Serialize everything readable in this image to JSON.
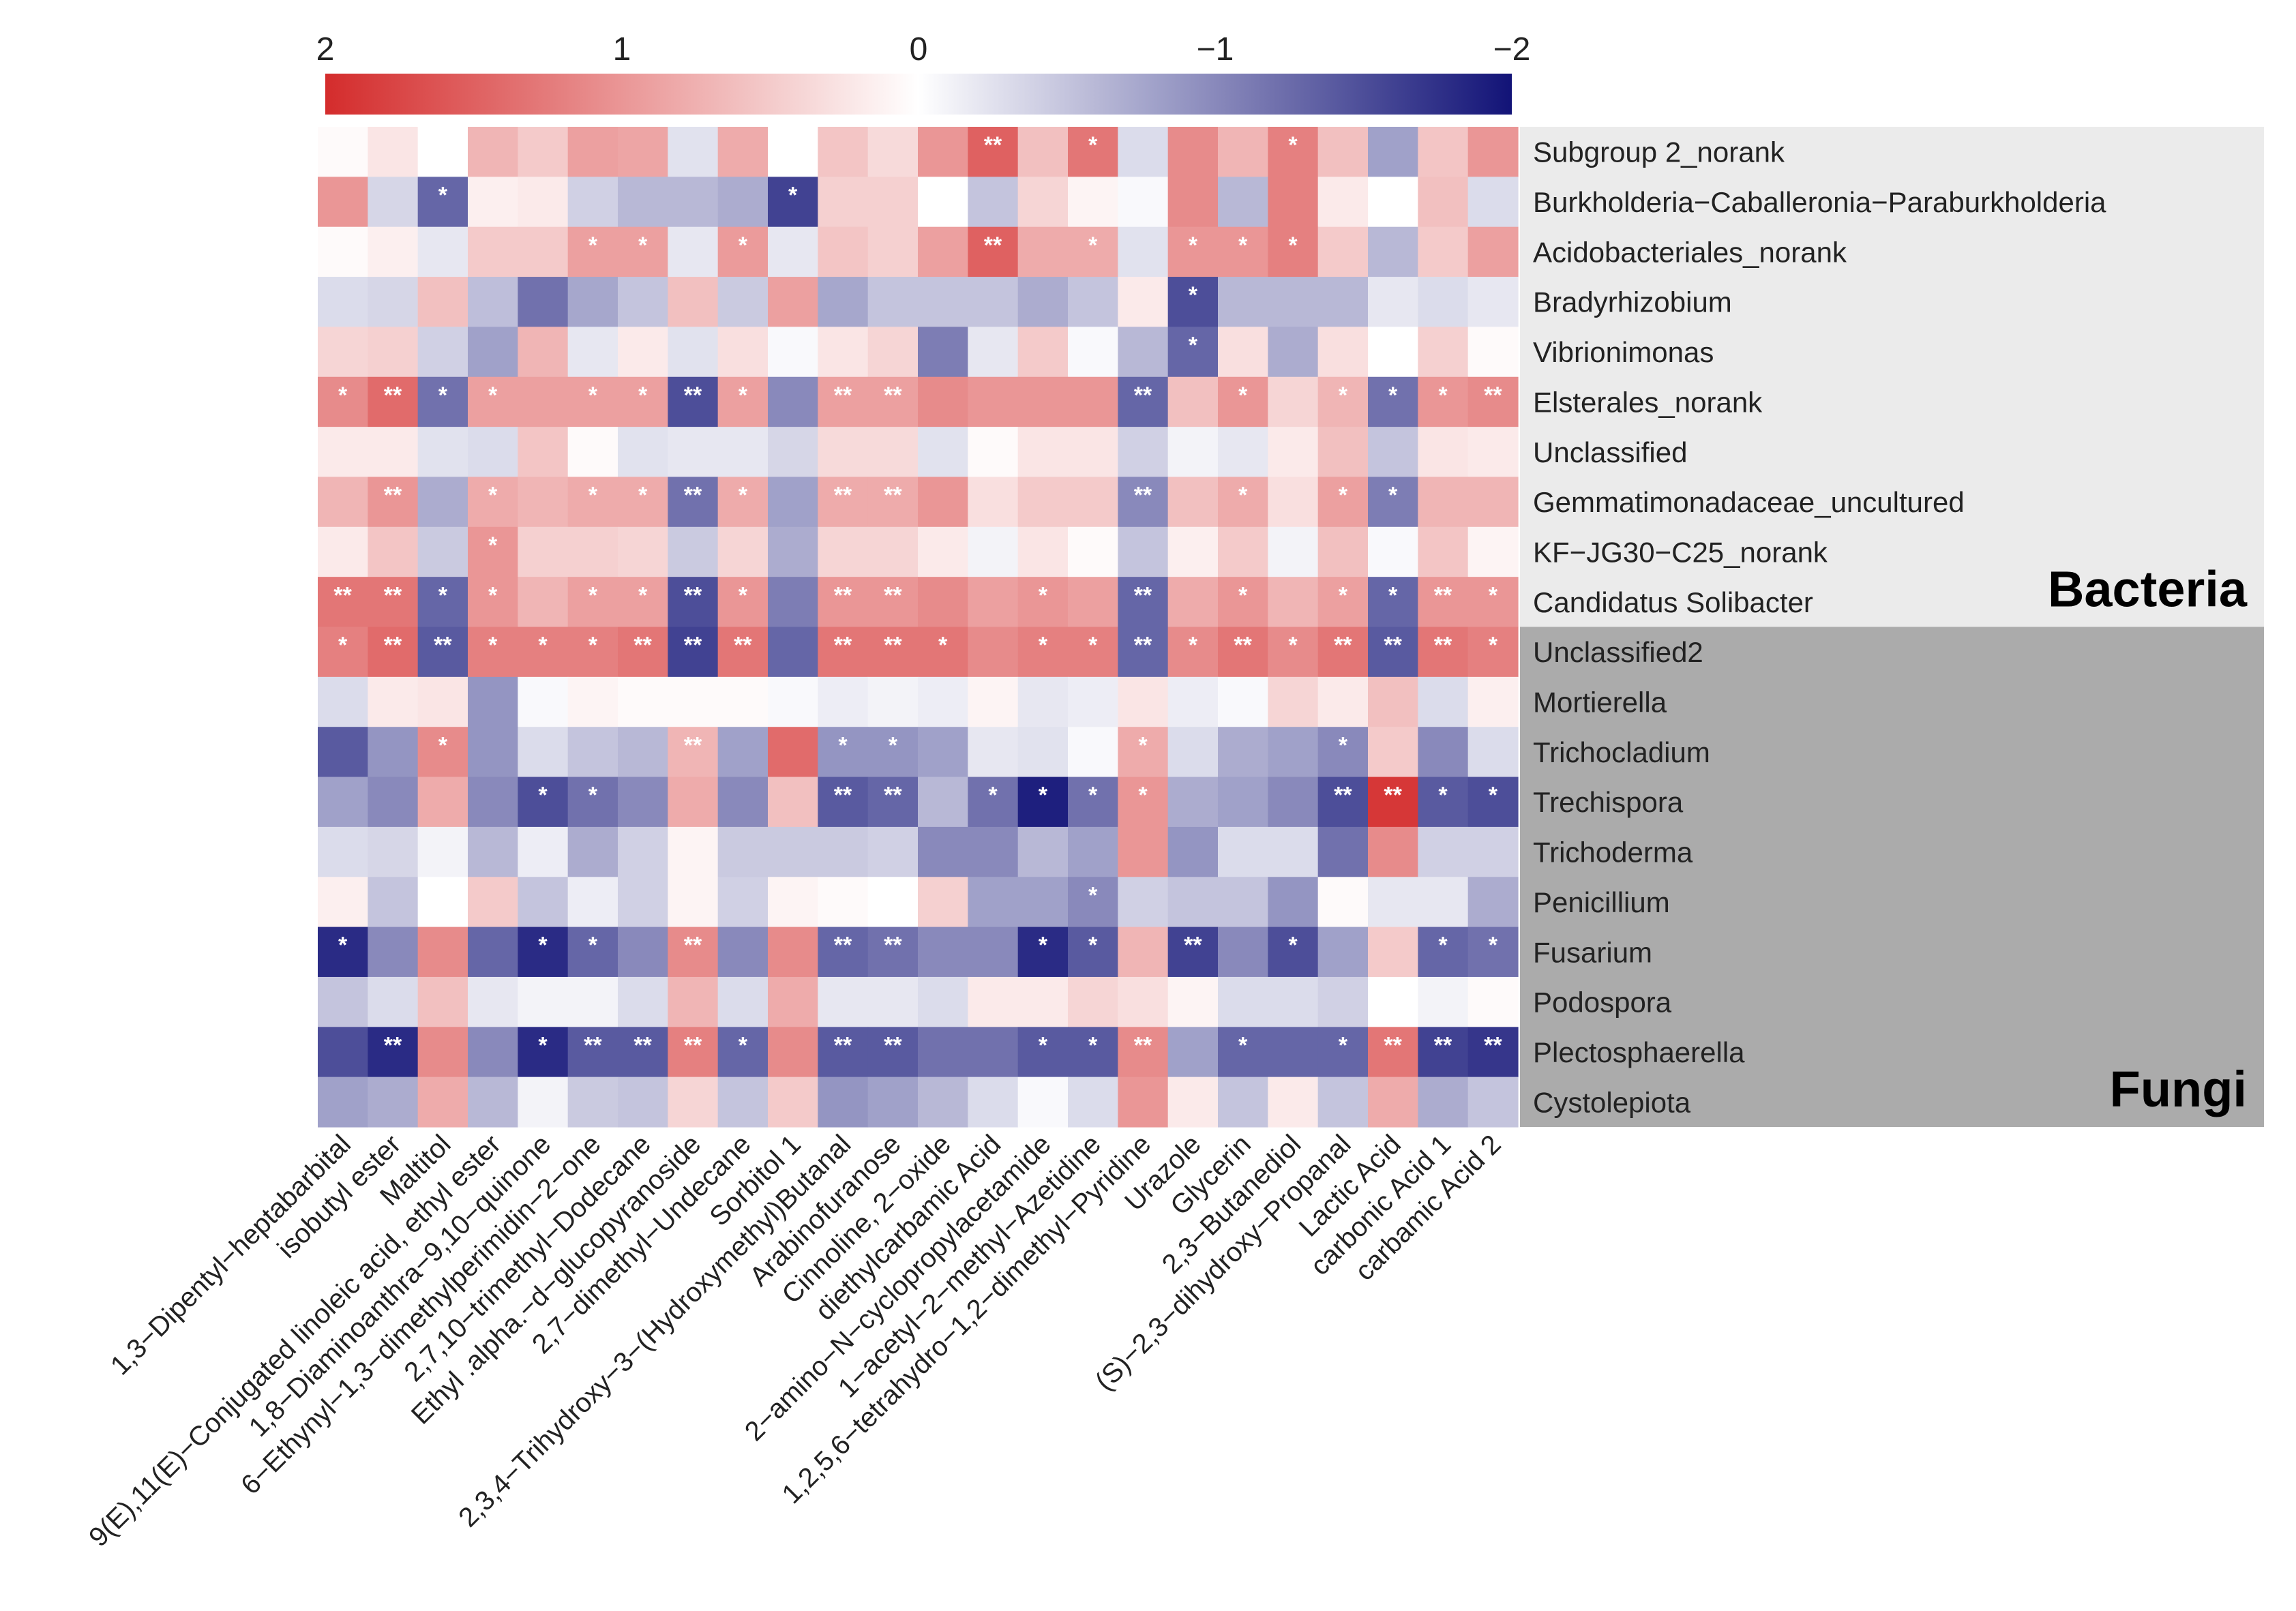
{
  "chart_data": {
    "type": "heatmap",
    "scale": {
      "min": -2,
      "max": 2,
      "ticks": [
        {
          "value": 2,
          "label": "2"
        },
        {
          "value": 1,
          "label": "1"
        },
        {
          "value": 0,
          "label": "0"
        },
        {
          "value": -1,
          "label": "−1"
        },
        {
          "value": -2,
          "label": "−2"
        }
      ],
      "colors": {
        "high": "#d42c2c",
        "mid": "#ffffff",
        "low": "#121377"
      }
    },
    "groups": [
      {
        "label": "Bacteria",
        "from_row": 0,
        "to_row": 9,
        "color": "#ebebeb"
      },
      {
        "label": "Fungi",
        "from_row": 10,
        "to_row": 19,
        "color": "#ababab"
      }
    ],
    "rows": [
      "Subgroup 2_norank",
      "Burkholderia−Caballeronia−Paraburkholderia",
      "Acidobacteriales_norank",
      "Bradyrhizobium",
      "Vibrionimonas",
      "Elsterales_norank",
      "Unclassified",
      "Gemmatimonadaceae_uncultured",
      "KF−JG30−C25_norank",
      "Candidatus Solibacter",
      "Unclassified2",
      "Mortierella",
      "Trichocladium",
      "Trechispora",
      "Trichoderma",
      "Penicillium",
      "Fusarium",
      "Podospora",
      "Plectosphaerella",
      "Cystolepiota"
    ],
    "columns": [
      "1,3−Dipentyl−heptabarbital",
      "isobutyl ester",
      "Maltitol",
      "9(E),11(E)−Conjugated linoleic acid, ethyl ester",
      "1,8−Diaminoanthra−9,10−quinone",
      "6−Ethynyl−1,3−dimethylperimidin−2−one",
      "2,7,10−trimethyl−Dodecane",
      "Ethyl .alpha.−d−glucopyranoside",
      "2,7−dimethyl−Undecane",
      "Sorbitol 1",
      "2,3,4−Trihydroxy−3−(Hydroxymethyl)Butanal",
      "Arabinofuranose",
      "Cinnoline, 2−oxide",
      "diethylcarbamic Acid",
      "2−amino−N−cyclopropylacetamide",
      "1−acetyl−2−methyl−Azetidine",
      "1,2,5,6−tetrahydro−1,2−dimethyl−Pyridine",
      "Urazole",
      "Glycerin",
      "2,3−Butanediol",
      "(S)−2,3−dihydroxy−Propanal",
      "Lactic Acid",
      "carbonic Acid 1",
      "carbamic Acid 2"
    ],
    "values": [
      [
        0.05,
        0.25,
        0.0,
        0.7,
        0.5,
        0.9,
        0.85,
        -0.25,
        0.8,
        0.0,
        0.55,
        0.35,
        1.0,
        1.5,
        0.6,
        1.3,
        -0.3,
        1.1,
        0.7,
        1.2,
        0.6,
        -0.8,
        0.55,
        1.0
      ],
      [
        1.0,
        -0.35,
        -1.3,
        0.15,
        0.2,
        -0.4,
        -0.6,
        -0.6,
        -0.7,
        -1.6,
        0.45,
        0.45,
        0.0,
        -0.5,
        0.4,
        0.1,
        -0.05,
        1.1,
        -0.6,
        1.2,
        0.2,
        0.0,
        0.6,
        -0.3
      ],
      [
        0.05,
        0.15,
        -0.2,
        0.5,
        0.5,
        0.9,
        0.9,
        -0.2,
        0.95,
        -0.2,
        0.55,
        0.45,
        0.9,
        1.5,
        0.8,
        0.8,
        -0.25,
        1.0,
        1.0,
        1.2,
        0.5,
        -0.6,
        0.5,
        0.9
      ],
      [
        -0.3,
        -0.35,
        0.6,
        -0.55,
        -1.2,
        -0.75,
        -0.5,
        0.6,
        -0.45,
        0.9,
        -0.75,
        -0.5,
        -0.5,
        -0.5,
        -0.7,
        -0.5,
        0.2,
        -1.5,
        -0.6,
        -0.6,
        -0.6,
        -0.2,
        -0.3,
        -0.2
      ],
      [
        0.4,
        0.45,
        -0.4,
        -0.8,
        0.7,
        -0.2,
        0.2,
        -0.25,
        0.3,
        -0.05,
        0.25,
        0.4,
        -1.1,
        -0.2,
        0.5,
        -0.05,
        -0.6,
        -1.3,
        0.3,
        -0.7,
        0.3,
        0.0,
        0.45,
        0.05
      ],
      [
        1.1,
        1.4,
        -1.2,
        0.9,
        0.9,
        0.9,
        0.9,
        -1.5,
        0.9,
        -1.0,
        0.9,
        0.9,
        1.1,
        1.0,
        1.0,
        1.0,
        -1.3,
        0.6,
        1.0,
        0.4,
        0.7,
        -1.2,
        1.0,
        1.1
      ],
      [
        0.2,
        0.2,
        -0.25,
        -0.3,
        0.55,
        0.05,
        -0.25,
        -0.2,
        -0.2,
        -0.35,
        0.35,
        0.35,
        -0.25,
        0.05,
        0.25,
        0.25,
        -0.4,
        -0.1,
        -0.2,
        0.2,
        0.6,
        -0.5,
        0.25,
        0.2
      ],
      [
        0.7,
        1.0,
        -0.7,
        0.8,
        0.7,
        0.8,
        0.8,
        -1.2,
        0.8,
        -0.8,
        0.8,
        0.8,
        1.0,
        0.3,
        0.5,
        0.5,
        -1.0,
        0.6,
        0.8,
        0.3,
        0.9,
        -1.1,
        0.7,
        0.7
      ],
      [
        0.2,
        0.55,
        -0.45,
        1.0,
        0.45,
        0.45,
        0.4,
        -0.45,
        0.4,
        -0.7,
        0.4,
        0.4,
        0.2,
        -0.1,
        0.25,
        0.05,
        -0.5,
        0.15,
        0.5,
        -0.1,
        0.6,
        -0.05,
        0.55,
        0.1
      ],
      [
        1.3,
        1.3,
        -1.3,
        1.0,
        0.7,
        0.9,
        0.9,
        -1.5,
        1.0,
        -1.1,
        1.0,
        1.0,
        1.1,
        0.9,
        1.0,
        0.9,
        -1.3,
        0.8,
        1.0,
        0.7,
        0.9,
        -1.3,
        1.0,
        1.0
      ],
      [
        1.2,
        1.4,
        -1.4,
        1.2,
        1.2,
        1.2,
        1.3,
        -1.6,
        1.3,
        -1.3,
        1.3,
        1.3,
        1.3,
        1.1,
        1.2,
        1.2,
        -1.3,
        1.1,
        1.3,
        1.1,
        1.3,
        -1.4,
        1.3,
        1.2
      ],
      [
        -0.3,
        0.2,
        0.25,
        -0.9,
        -0.05,
        0.1,
        0.05,
        0.05,
        0.05,
        -0.05,
        -0.15,
        -0.1,
        -0.15,
        0.1,
        -0.2,
        -0.15,
        0.25,
        -0.15,
        -0.05,
        0.4,
        0.2,
        0.6,
        -0.3,
        0.15
      ],
      [
        -1.4,
        -0.9,
        1.1,
        -0.9,
        -0.3,
        -0.5,
        -0.6,
        0.7,
        -0.8,
        1.4,
        -0.9,
        -0.9,
        -0.8,
        -0.2,
        -0.25,
        -0.05,
        0.8,
        -0.3,
        -0.7,
        -0.8,
        -1.0,
        0.5,
        -1.0,
        -0.3
      ],
      [
        -0.8,
        -1.0,
        0.8,
        -1.0,
        -1.5,
        -1.2,
        -1.0,
        0.8,
        -1.0,
        0.6,
        -1.4,
        -1.3,
        -0.6,
        -1.2,
        -1.9,
        -1.2,
        1.0,
        -0.7,
        -0.8,
        -1.0,
        -1.5,
        1.9,
        -1.4,
        -1.5
      ],
      [
        -0.3,
        -0.35,
        -0.1,
        -0.6,
        -0.15,
        -0.7,
        -0.4,
        0.1,
        -0.45,
        -0.45,
        -0.45,
        -0.4,
        -1.0,
        -1.0,
        -0.6,
        -0.8,
        1.0,
        -0.9,
        -0.3,
        -0.3,
        -1.2,
        1.1,
        -0.4,
        -0.4
      ],
      [
        0.15,
        -0.5,
        0.0,
        0.5,
        -0.5,
        -0.15,
        -0.4,
        0.1,
        -0.4,
        0.1,
        0.05,
        0.0,
        0.45,
        -0.8,
        -0.8,
        -1.0,
        -0.4,
        -0.5,
        -0.5,
        -0.9,
        0.05,
        -0.2,
        -0.2,
        -0.7
      ],
      [
        -1.8,
        -1.0,
        1.1,
        -1.3,
        -1.8,
        -1.3,
        -1.0,
        1.1,
        -1.0,
        1.1,
        -1.3,
        -1.2,
        -1.0,
        -1.0,
        -1.8,
        -1.4,
        0.7,
        -1.6,
        -1.0,
        -1.5,
        -0.8,
        0.5,
        -1.3,
        -1.2
      ],
      [
        -0.5,
        -0.3,
        0.6,
        -0.2,
        -0.1,
        -0.1,
        -0.3,
        0.7,
        -0.3,
        0.8,
        -0.2,
        -0.2,
        -0.3,
        0.2,
        0.2,
        0.4,
        0.3,
        0.1,
        -0.3,
        -0.3,
        -0.4,
        0.0,
        -0.1,
        0.05
      ],
      [
        -1.5,
        -1.8,
        1.1,
        -1.0,
        -1.8,
        -1.4,
        -1.4,
        1.2,
        -1.3,
        1.1,
        -1.4,
        -1.4,
        -1.2,
        -1.2,
        -1.4,
        -1.4,
        1.1,
        -0.8,
        -1.3,
        -1.3,
        -1.3,
        1.3,
        -1.6,
        -1.7
      ],
      [
        -0.8,
        -0.7,
        0.8,
        -0.6,
        -0.1,
        -0.45,
        -0.5,
        0.4,
        -0.5,
        0.5,
        -0.9,
        -0.8,
        -0.6,
        -0.3,
        -0.05,
        -0.3,
        1.0,
        0.2,
        -0.5,
        0.2,
        -0.5,
        0.8,
        -0.7,
        -0.5
      ]
    ],
    "significance": [
      [
        "",
        "",
        "",
        "",
        "",
        "",
        "",
        "",
        "",
        "",
        "",
        "",
        "",
        "**",
        "",
        "*",
        "",
        "",
        "",
        "*",
        "",
        "",
        "",
        ""
      ],
      [
        "",
        "",
        "*",
        "",
        "",
        "",
        "",
        "",
        "",
        "*",
        "",
        "",
        "",
        "",
        "",
        "",
        "",
        "",
        "",
        "",
        "",
        "",
        "",
        ""
      ],
      [
        "",
        "",
        "",
        "",
        "",
        "*",
        "*",
        "",
        "*",
        "",
        "",
        "",
        "",
        "**",
        "",
        "*",
        "",
        "*",
        "*",
        "*",
        "",
        "",
        "",
        ""
      ],
      [
        "",
        "",
        "",
        "",
        "",
        "",
        "",
        "",
        "",
        "",
        "",
        "",
        "",
        "",
        "",
        "",
        "",
        "*",
        "",
        "",
        "",
        "",
        "",
        ""
      ],
      [
        "",
        "",
        "",
        "",
        "",
        "",
        "",
        "",
        "",
        "",
        "",
        "",
        "",
        "",
        "",
        "",
        "",
        "*",
        "",
        "",
        "",
        "",
        "",
        ""
      ],
      [
        "*",
        "**",
        "*",
        "*",
        "",
        "*",
        "*",
        "**",
        "*",
        "",
        "**",
        "**",
        "",
        "",
        "",
        "",
        "**",
        "",
        "*",
        "",
        "*",
        "*",
        "*",
        "**"
      ],
      [
        "",
        "",
        "",
        "",
        "",
        "",
        "",
        "",
        "",
        "",
        "",
        "",
        "",
        "",
        "",
        "",
        "",
        "",
        "",
        "",
        "",
        "",
        "",
        ""
      ],
      [
        "",
        "**",
        "",
        "*",
        "",
        "*",
        "*",
        "**",
        "*",
        "",
        "**",
        "**",
        "",
        "",
        "",
        "",
        "**",
        "",
        "*",
        "",
        "*",
        "*",
        "",
        ""
      ],
      [
        "",
        "",
        "",
        "*",
        "",
        "",
        "",
        "",
        "",
        "",
        "",
        "",
        "",
        "",
        "",
        "",
        "",
        "",
        "",
        "",
        "",
        "",
        "",
        ""
      ],
      [
        "**",
        "**",
        "*",
        "*",
        "",
        "*",
        "*",
        "**",
        "*",
        "",
        "**",
        "**",
        "",
        "",
        "*",
        "",
        "**",
        "",
        "*",
        "",
        "*",
        "*",
        "**",
        "*"
      ],
      [
        "*",
        "**",
        "**",
        "*",
        "*",
        "*",
        "**",
        "**",
        "**",
        "",
        "**",
        "**",
        "*",
        "",
        "*",
        "*",
        "**",
        "*",
        "**",
        "*",
        "**",
        "**",
        "**",
        "*"
      ],
      [
        "",
        "",
        "",
        "",
        "",
        "",
        "",
        "",
        "",
        "",
        "",
        "",
        "",
        "",
        "",
        "",
        "",
        "",
        "",
        "",
        "",
        "",
        "",
        ""
      ],
      [
        "",
        "",
        "*",
        "",
        "",
        "",
        "",
        "**",
        "",
        "",
        "*",
        "*",
        "",
        "",
        "",
        "",
        "*",
        "",
        "",
        "",
        "*",
        "",
        "",
        ""
      ],
      [
        "",
        "",
        "",
        "",
        "*",
        "*",
        "",
        "",
        "",
        "",
        "**",
        "**",
        "",
        "*",
        "*",
        "*",
        "*",
        "",
        "",
        "",
        "**",
        "**",
        "*",
        "*"
      ],
      [
        "",
        "",
        "",
        "",
        "",
        "",
        "",
        "",
        "",
        "",
        "",
        "",
        "",
        "",
        "",
        "",
        "",
        "",
        "",
        "",
        "",
        "",
        "",
        ""
      ],
      [
        "",
        "",
        "",
        "",
        "",
        "",
        "",
        "",
        "",
        "",
        "",
        "",
        "",
        "",
        "",
        "*",
        "",
        "",
        "",
        "",
        "",
        "",
        "",
        ""
      ],
      [
        "*",
        "",
        "",
        "",
        "*",
        "*",
        "",
        "**",
        "",
        "",
        "**",
        "**",
        "",
        "",
        "*",
        "*",
        "",
        "**",
        "",
        "*",
        "",
        "",
        "*",
        "*"
      ],
      [
        "",
        "",
        "",
        "",
        "",
        "",
        "",
        "",
        "",
        "",
        "",
        "",
        "",
        "",
        "",
        "",
        "",
        "",
        "",
        "",
        "",
        "",
        "",
        ""
      ],
      [
        "",
        "**",
        "",
        "",
        "*",
        "**",
        "**",
        "**",
        "*",
        "",
        "**",
        "**",
        "",
        "",
        "*",
        "*",
        "**",
        "",
        "*",
        "",
        "*",
        "**",
        "**",
        "**"
      ],
      [
        "",
        "",
        "",
        "",
        "",
        "",
        "",
        "",
        "",
        "",
        "",
        "",
        "",
        "",
        "",
        "",
        "",
        "",
        "",
        "",
        "",
        "",
        "",
        ""
      ]
    ]
  }
}
